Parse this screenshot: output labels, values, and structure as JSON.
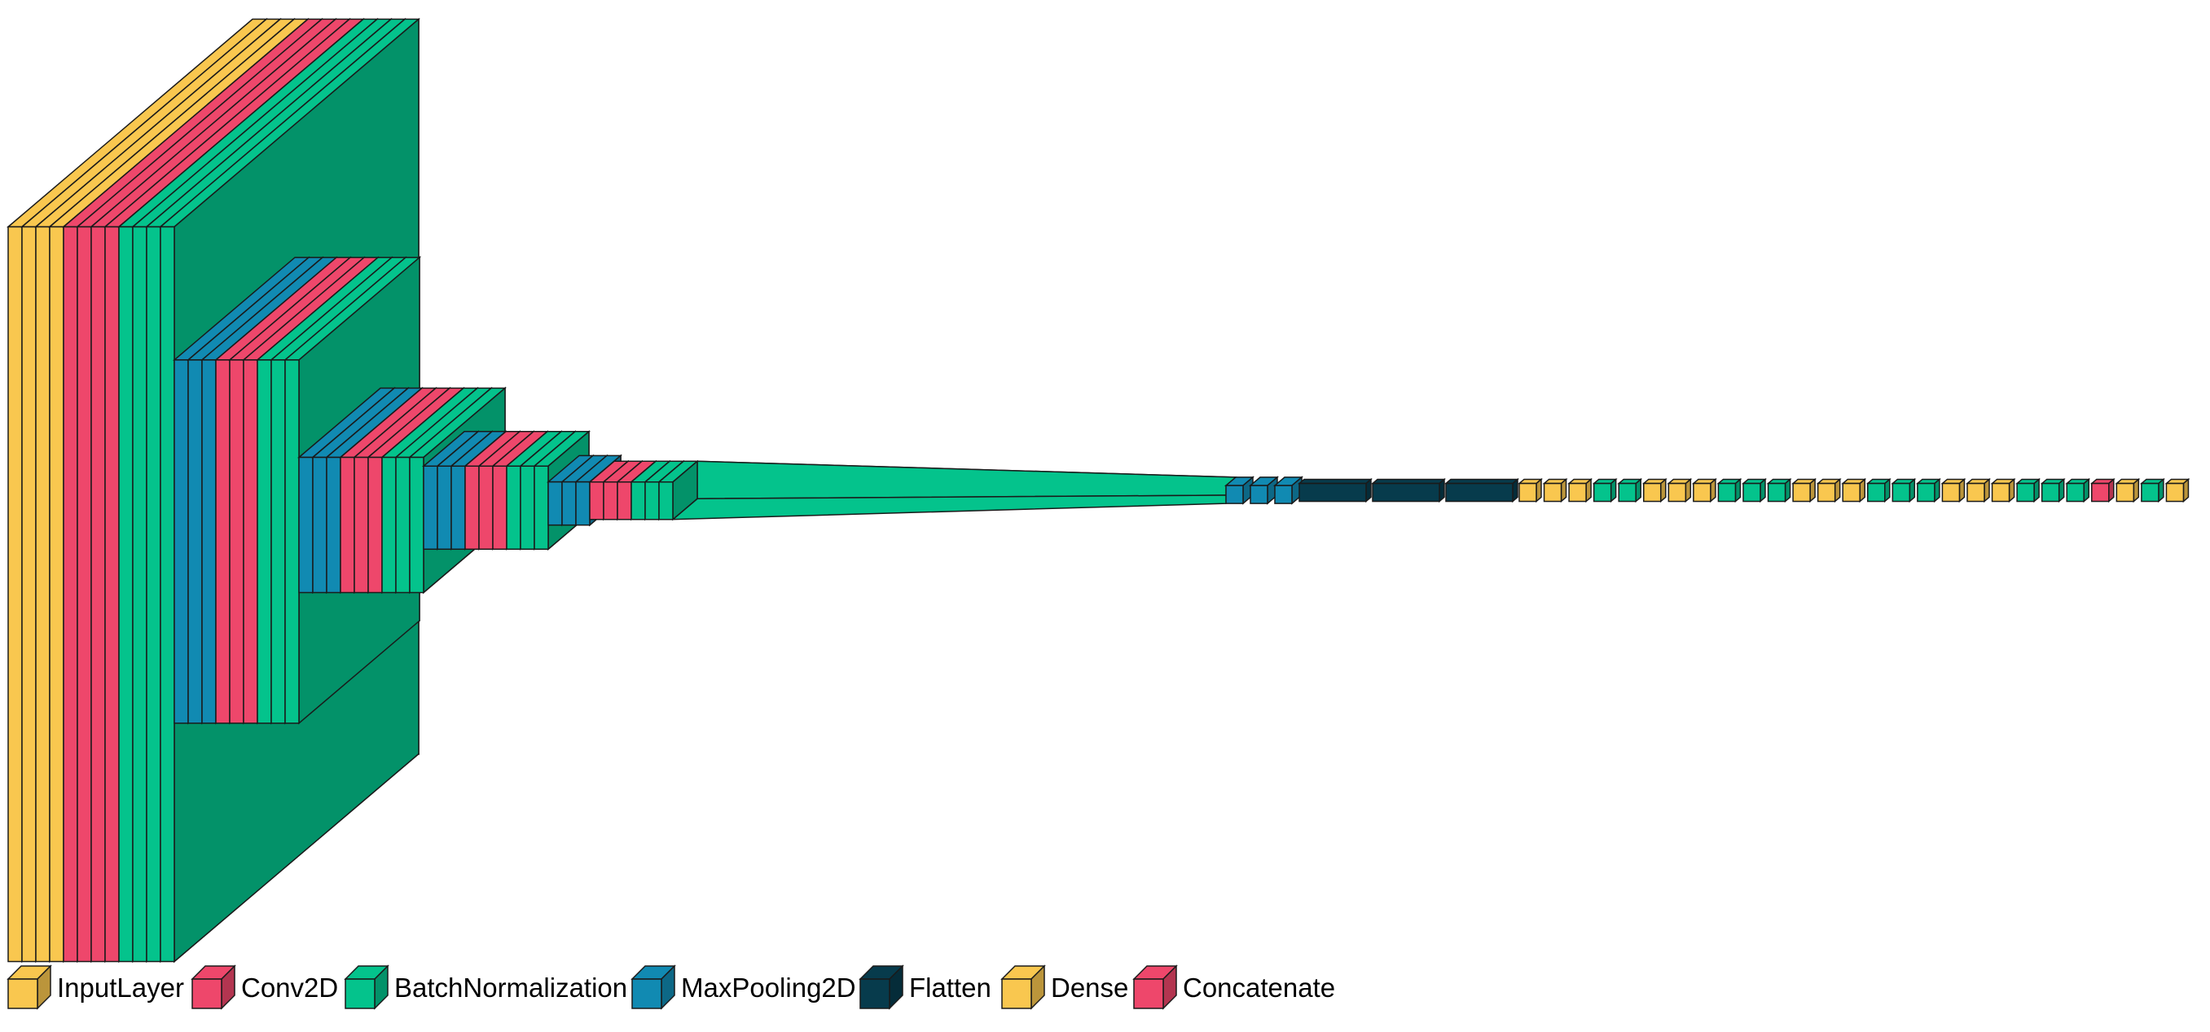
{
  "colors": {
    "InputLayer": "#f9c74f",
    "Conv2D": "#ee476b",
    "BatchNormalization": "#04c38c",
    "MaxPooling2D": "#118ab2",
    "Flatten": "#073b4c",
    "Dense": "#f9c74f",
    "Concatenate": "#ee476b",
    "stroke": "#1a1a1a"
  },
  "legend": [
    {
      "label": "InputLayer",
      "type": "InputLayer"
    },
    {
      "label": "Conv2D",
      "type": "Conv2D"
    },
    {
      "label": "BatchNormalization",
      "type": "BatchNormalization"
    },
    {
      "label": "MaxPooling2D",
      "type": "MaxPooling2D"
    },
    {
      "label": "Flatten",
      "type": "Flatten"
    },
    {
      "label": "Dense",
      "type": "Dense"
    },
    {
      "label": "Concatenate",
      "type": "Concatenate"
    }
  ],
  "layer_sequence": [
    "InputLayer",
    "InputLayer",
    "InputLayer",
    "InputLayer",
    "Conv2D",
    "Conv2D",
    "Conv2D",
    "Conv2D",
    "BatchNormalization",
    "BatchNormalization",
    "BatchNormalization",
    "BatchNormalization",
    "MaxPooling2D",
    "MaxPooling2D",
    "MaxPooling2D",
    "Conv2D",
    "Conv2D",
    "Conv2D",
    "BatchNormalization",
    "BatchNormalization",
    "BatchNormalization",
    "MaxPooling2D",
    "MaxPooling2D",
    "MaxPooling2D",
    "Conv2D",
    "Conv2D",
    "Conv2D",
    "BatchNormalization",
    "BatchNormalization",
    "BatchNormalization",
    "MaxPooling2D",
    "MaxPooling2D",
    "MaxPooling2D",
    "Conv2D",
    "Conv2D",
    "Conv2D",
    "BatchNormalization",
    "BatchNormalization",
    "BatchNormalization",
    "MaxPooling2D",
    "MaxPooling2D",
    "MaxPooling2D",
    "Conv2D",
    "Conv2D",
    "Conv2D",
    "BatchNormalization",
    "BatchNormalization",
    "BatchNormalization",
    "MaxPooling2D",
    "MaxPooling2D",
    "MaxPooling2D",
    "Flatten",
    "Flatten",
    "Flatten",
    "Dense",
    "Dense",
    "Dense",
    "BatchNormalization",
    "BatchNormalization",
    "Dense",
    "Dense",
    "Dense",
    "BatchNormalization",
    "BatchNormalization",
    "BatchNormalization",
    "Dense",
    "Dense",
    "Dense",
    "BatchNormalization",
    "BatchNormalization",
    "BatchNormalization",
    "Dense",
    "Dense",
    "Dense",
    "BatchNormalization",
    "BatchNormalization",
    "BatchNormalization",
    "Concatenate",
    "Dense",
    "BatchNormalization",
    "Dense"
  ]
}
